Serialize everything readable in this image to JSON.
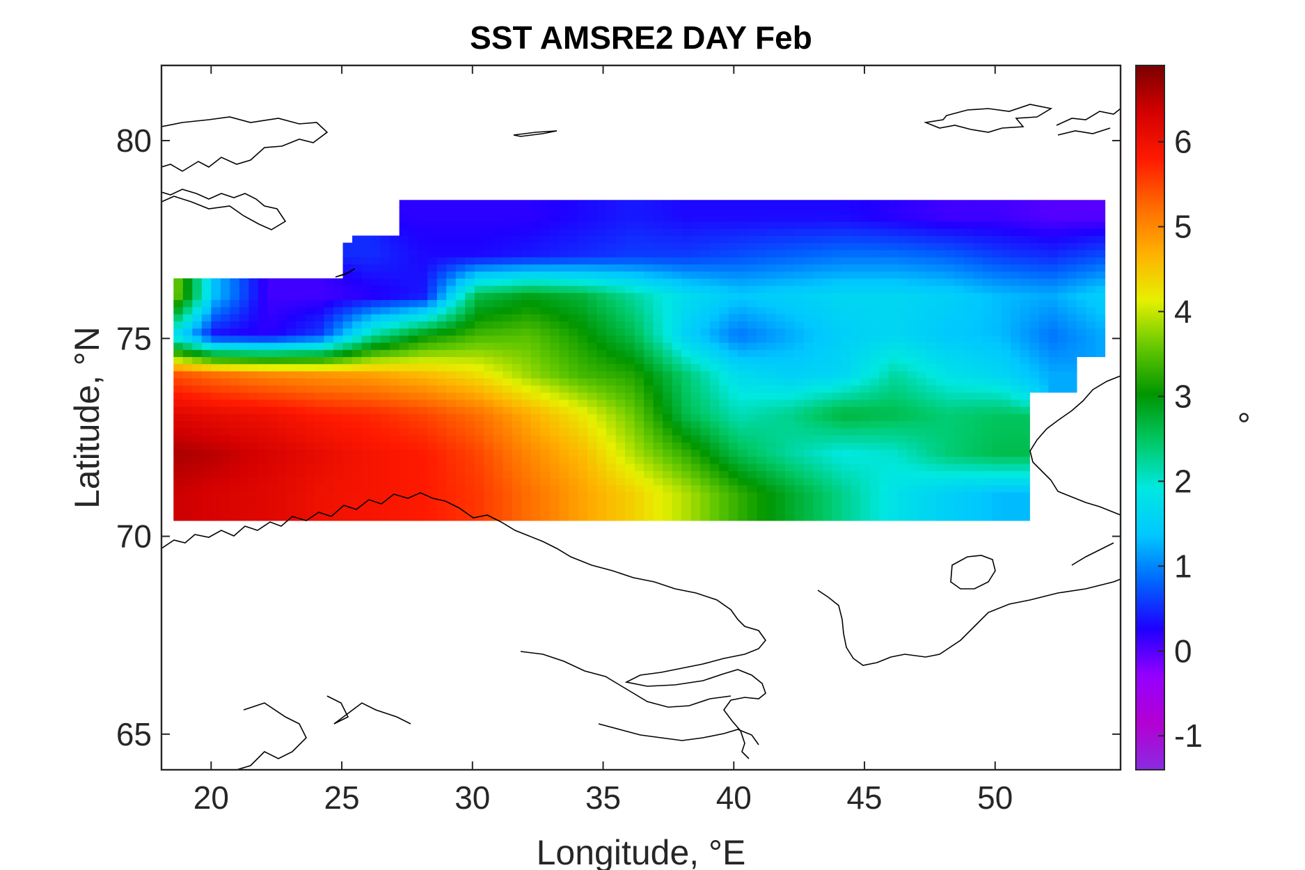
{
  "chart_data": {
    "type": "heatmap",
    "title": "SST AMSRE2 DAY Feb",
    "xlabel": "Longitude, °E",
    "ylabel": "Latitude, °N",
    "xlim": [
      18.1,
      54.8
    ],
    "ylim": [
      64.1,
      81.9
    ],
    "xticks": [
      20,
      25,
      30,
      35,
      40,
      45,
      50
    ],
    "yticks": [
      65,
      70,
      75,
      80
    ],
    "colorbar": {
      "label": "°",
      "clim": [
        -1.4,
        6.9
      ],
      "ticks": [
        -1,
        0,
        1,
        2,
        3,
        4,
        5,
        6
      ],
      "colors": [
        "#8a2be2",
        "#b300d2",
        "#9400ff",
        "#1e00ff",
        "#0064ff",
        "#00c8ff",
        "#00e8e0",
        "#00c864",
        "#009600",
        "#64c800",
        "#e6f000",
        "#ffb000",
        "#ff6a00",
        "#ff1a00",
        "#d40000",
        "#7a0000"
      ]
    },
    "grid": false,
    "field": {
      "description_free": true,
      "lon": [
        18.5,
        20,
        22,
        24,
        26,
        28,
        30,
        32,
        34,
        36,
        38,
        40,
        42,
        44,
        46,
        48,
        50,
        52,
        54
      ],
      "lat": [
        71,
        72,
        73,
        74,
        75,
        76,
        77,
        78
      ],
      "sst": [
        [
          6.4,
          6.3,
          6.2,
          6.0,
          5.9,
          5.8,
          5.6,
          5.2,
          4.8,
          4.4,
          3.9,
          3.3,
          2.8,
          2.3,
          1.8,
          1.5,
          1.3,
          null,
          null
        ],
        [
          6.6,
          6.5,
          6.3,
          6.1,
          5.9,
          5.8,
          5.5,
          5.0,
          4.6,
          3.9,
          3.3,
          2.6,
          2.2,
          1.9,
          2.0,
          2.4,
          2.6,
          null,
          null
        ],
        [
          6.2,
          6.1,
          6.0,
          5.8,
          5.7,
          5.5,
          5.2,
          4.7,
          4.2,
          3.6,
          2.6,
          2.1,
          2.3,
          2.7,
          2.6,
          2.4,
          2.5,
          null,
          null
        ],
        [
          5.4,
          5.2,
          5.0,
          4.9,
          4.8,
          4.6,
          4.3,
          3.8,
          3.4,
          3.2,
          2.4,
          1.7,
          1.5,
          1.6,
          2.2,
          1.8,
          1.6,
          1.2,
          null
        ],
        [
          1.6,
          0.3,
          0.2,
          0.6,
          2.2,
          3.0,
          3.4,
          3.5,
          3.1,
          2.6,
          1.5,
          0.9,
          1.2,
          1.5,
          1.6,
          1.4,
          1.3,
          0.9,
          1.2
        ],
        [
          3.6,
          1.3,
          0.1,
          0.1,
          0.2,
          0.4,
          2.6,
          2.9,
          2.7,
          2.2,
          1.7,
          1.4,
          1.5,
          1.6,
          1.6,
          1.5,
          1.3,
          1.2,
          1.5
        ],
        [
          null,
          null,
          null,
          null,
          0.5,
          0.3,
          0.3,
          0.4,
          0.5,
          0.6,
          0.6,
          0.7,
          0.8,
          0.9,
          0.9,
          0.8,
          0.6,
          0.5,
          0.7
        ],
        [
          null,
          null,
          null,
          null,
          null,
          0.2,
          0.2,
          0.2,
          0.3,
          0.4,
          0.3,
          0.3,
          0.3,
          0.3,
          0.2,
          0.1,
          0.1,
          0.0,
          0.0
        ]
      ]
    }
  }
}
